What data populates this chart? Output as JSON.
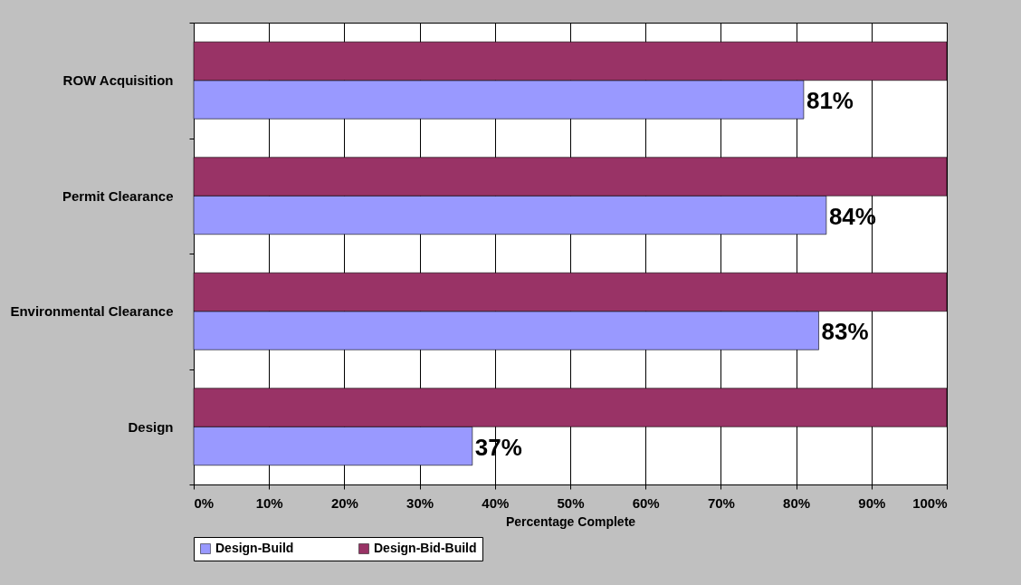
{
  "chart_data": {
    "type": "bar",
    "orientation": "horizontal",
    "categories": [
      "ROW Acquisition",
      "Permit Clearance",
      "Environmental Clearance",
      "Design"
    ],
    "series": [
      {
        "name": "Design-Build",
        "color": "#9999ff",
        "values": [
          81,
          84,
          83,
          37
        ],
        "value_labels": [
          "81%",
          "84%",
          "83%",
          "37%"
        ]
      },
      {
        "name": "Design-Bid-Build",
        "color": "#993366",
        "values": [
          100,
          100,
          100,
          100
        ]
      }
    ],
    "xlabel": "Percentage Complete",
    "xlim": [
      0,
      100
    ],
    "xticks": [
      {
        "value": 0,
        "label": "0%"
      },
      {
        "value": 10,
        "label": "10%"
      },
      {
        "value": 20,
        "label": "20%"
      },
      {
        "value": 30,
        "label": "30%"
      },
      {
        "value": 40,
        "label": "40%"
      },
      {
        "value": 50,
        "label": "50%"
      },
      {
        "value": 60,
        "label": "60%"
      },
      {
        "value": 70,
        "label": "70%"
      },
      {
        "value": 80,
        "label": "80%"
      },
      {
        "value": 90,
        "label": "90%"
      },
      {
        "value": 100,
        "label": "100%"
      }
    ],
    "grid": "x",
    "legend": "bottom"
  }
}
